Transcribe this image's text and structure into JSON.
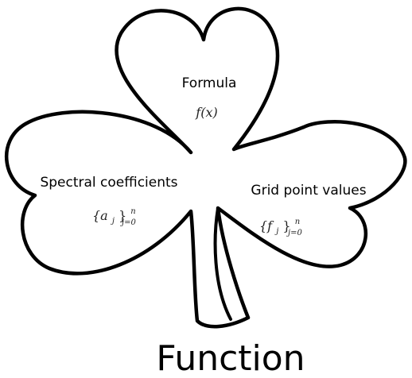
{
  "diagram": {
    "title": "Function",
    "leaves": {
      "top": {
        "label": "Formula",
        "formula": "f(x)"
      },
      "left": {
        "label": "Spectral coefficients",
        "formula_base": "{a",
        "formula_sub": "j",
        "formula_close": "}",
        "formula_sup": "n",
        "formula_range": "j=0"
      },
      "right": {
        "label": "Grid point values",
        "formula_base": "{f",
        "formula_sub": "j",
        "formula_close": "}",
        "formula_sup": "n",
        "formula_range": "j=0"
      }
    },
    "colors": {
      "outline": "#000000",
      "fill": "#ffffff"
    }
  }
}
